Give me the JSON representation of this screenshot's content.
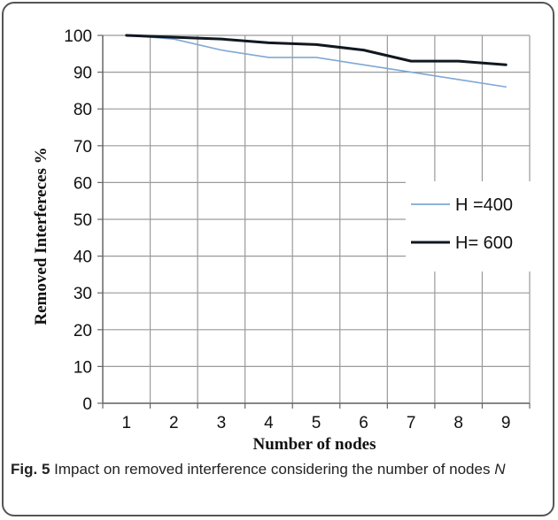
{
  "chart_data": {
    "type": "line",
    "x": [
      1,
      2,
      3,
      4,
      5,
      6,
      7,
      8,
      9
    ],
    "series": [
      {
        "name": "H =400",
        "values": [
          100,
          99,
          96,
          94,
          94,
          92,
          90,
          88,
          86
        ],
        "color": "#7fa7d4"
      },
      {
        "name": "H= 600",
        "values": [
          100,
          99.5,
          99,
          98,
          97.5,
          96,
          93,
          93,
          92
        ],
        "color": "#101820"
      }
    ],
    "xlabel": "Number of nodes",
    "ylabel": "Removed Interfereces %",
    "ylim": [
      0,
      100
    ],
    "yticks": [
      0,
      10,
      20,
      30,
      40,
      50,
      60,
      70,
      80,
      90,
      100
    ],
    "xticks": [
      1,
      2,
      3,
      4,
      5,
      6,
      7,
      8,
      9
    ],
    "grid": true,
    "legend_position": "center-right"
  },
  "caption": {
    "label": "Fig. 5",
    "text": " Impact on removed interference considering the number of nodes ",
    "variable": "N"
  }
}
